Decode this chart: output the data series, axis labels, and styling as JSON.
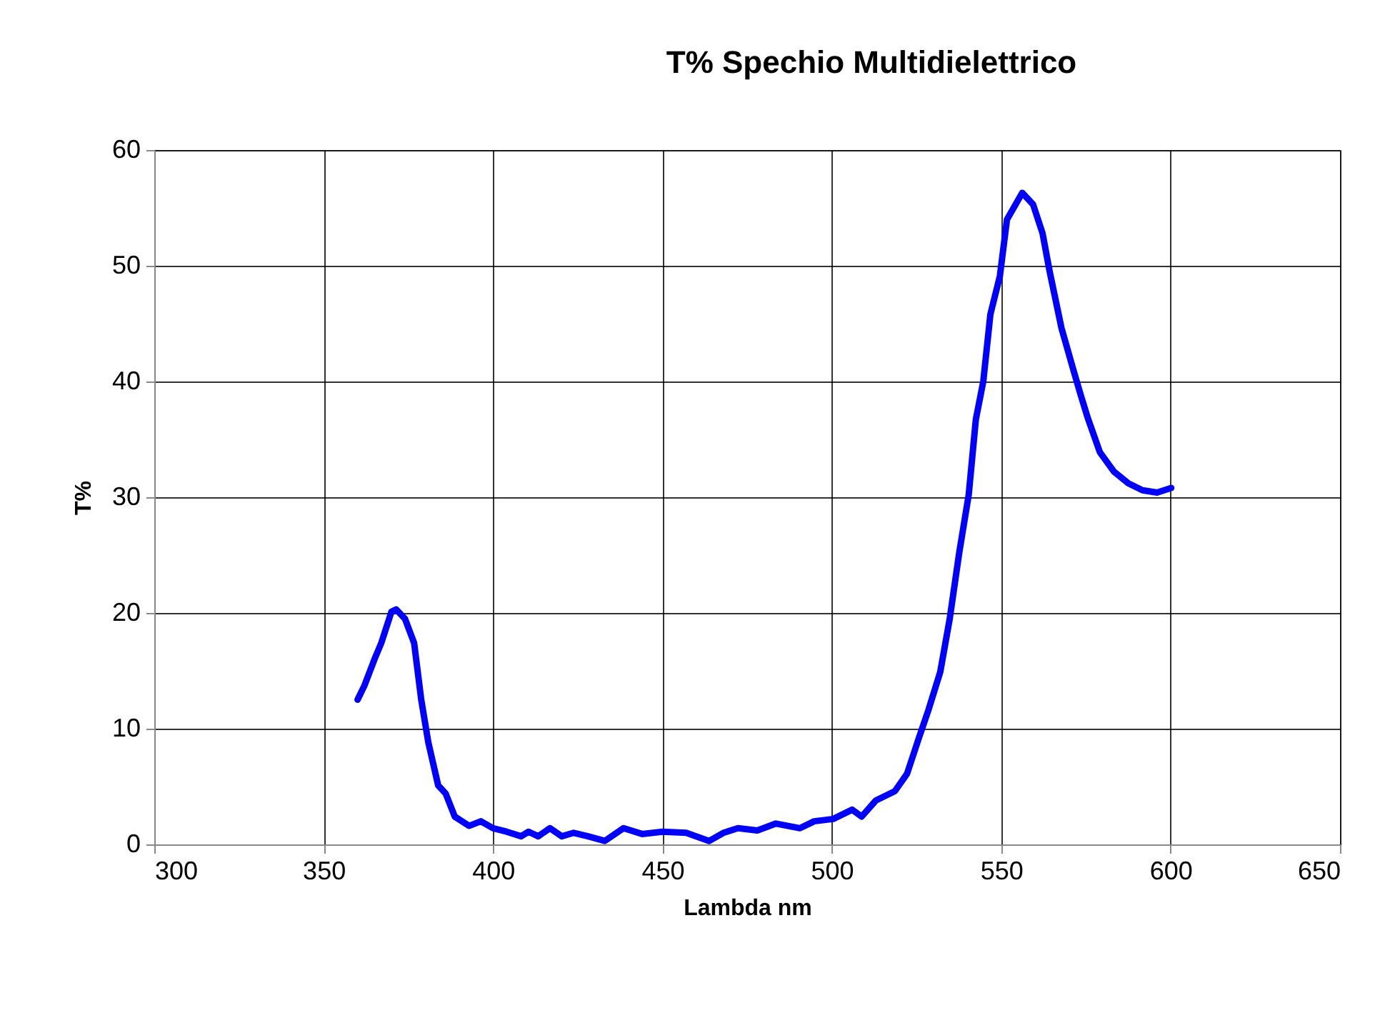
{
  "chart_data": {
    "type": "line",
    "title": "T% Spechio Multidielettrico",
    "xlabel": "Lambda nm",
    "ylabel": "T%",
    "x": [
      360,
      362,
      365,
      367,
      370,
      371.4,
      374,
      376.7,
      378.8,
      380.9,
      383.8,
      386,
      388.7,
      392.9,
      396.4,
      400,
      404,
      408.3,
      410.5,
      413.3,
      416.8,
      420.3,
      423.8,
      428,
      433,
      438.5,
      444,
      450,
      457,
      463.8,
      468,
      472.3,
      478,
      483.5,
      490.6,
      494.8,
      500.4,
      506,
      508.8,
      513,
      518.6,
      522.2,
      525.7,
      528.5,
      532,
      534.8,
      537.6,
      540.4,
      542.5,
      544.7,
      546.8,
      549.6,
      551.7,
      556.2,
      559.4,
      562.2,
      564.3,
      567.8,
      571.4,
      573.5,
      575.6,
      579.1,
      583.3,
      587.5,
      591.7,
      596,
      600.2
    ],
    "series": [
      {
        "color": "#0000ff",
        "values": [
          12.5,
          13.7,
          16,
          17.4,
          20.1,
          20.3,
          19.5,
          17.4,
          12.5,
          8.8,
          5.1,
          4.4,
          2.4,
          1.6,
          2,
          1.4,
          1.1,
          0.7,
          1.1,
          0.7,
          1.4,
          0.7,
          1,
          0.7,
          0.3,
          1.4,
          0.9,
          1.1,
          1,
          0.3,
          1,
          1.4,
          1.2,
          1.8,
          1.4,
          2,
          2.2,
          3,
          2.4,
          3.8,
          4.6,
          6.1,
          9.2,
          11.6,
          14.9,
          19.5,
          25.2,
          30.2,
          36.7,
          40,
          45.8,
          49.1,
          54,
          56.3,
          55.3,
          52.8,
          49.5,
          44.6,
          40.9,
          38.8,
          36.8,
          33.9,
          32.2,
          31.2,
          30.6,
          30.4,
          30.8
        ]
      }
    ],
    "xlim": [
      300,
      650
    ],
    "xticks": [
      300,
      350,
      400,
      450,
      500,
      550,
      600,
      650
    ],
    "ylim": [
      0,
      60
    ],
    "yticks": [
      0,
      10,
      20,
      30,
      40,
      50,
      60
    ],
    "grid": true,
    "marker": "none",
    "line_style": "solid"
  }
}
